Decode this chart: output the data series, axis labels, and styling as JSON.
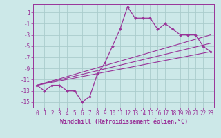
{
  "xlabel": "Windchill (Refroidissement éolien,°C)",
  "background_color": "#cce8e8",
  "grid_color": "#aacccc",
  "line_color": "#993399",
  "hours": [
    0,
    1,
    2,
    3,
    4,
    5,
    6,
    7,
    8,
    9,
    10,
    11,
    12,
    13,
    14,
    15,
    16,
    17,
    18,
    19,
    20,
    21,
    22,
    23
  ],
  "temp": [
    -12,
    -13,
    -12,
    -12,
    -13,
    -13,
    -15,
    -14,
    -10,
    -8,
    -5,
    -2,
    2,
    0,
    0,
    0,
    -2,
    -1,
    -2,
    -3,
    -3,
    -3,
    -5,
    -6
  ],
  "trend_lines": [
    {
      "x0": 0,
      "y0": -12,
      "x1": 23,
      "y1": -6
    },
    {
      "x0": 0,
      "y0": -12,
      "x1": 23,
      "y1": -4.5
    },
    {
      "x0": 0,
      "y0": -12,
      "x1": 23,
      "y1": -3
    }
  ],
  "xlim": [
    -0.5,
    23.5
  ],
  "ylim": [
    -16,
    2.5
  ],
  "yticks": [
    1,
    -1,
    -3,
    -5,
    -7,
    -9,
    -11,
    -13,
    -15
  ],
  "xticks": [
    0,
    1,
    2,
    3,
    4,
    5,
    6,
    7,
    8,
    9,
    10,
    11,
    12,
    13,
    14,
    15,
    16,
    17,
    18,
    19,
    20,
    21,
    22,
    23
  ],
  "tick_fontsize": 5.5,
  "xlabel_fontsize": 6.0
}
